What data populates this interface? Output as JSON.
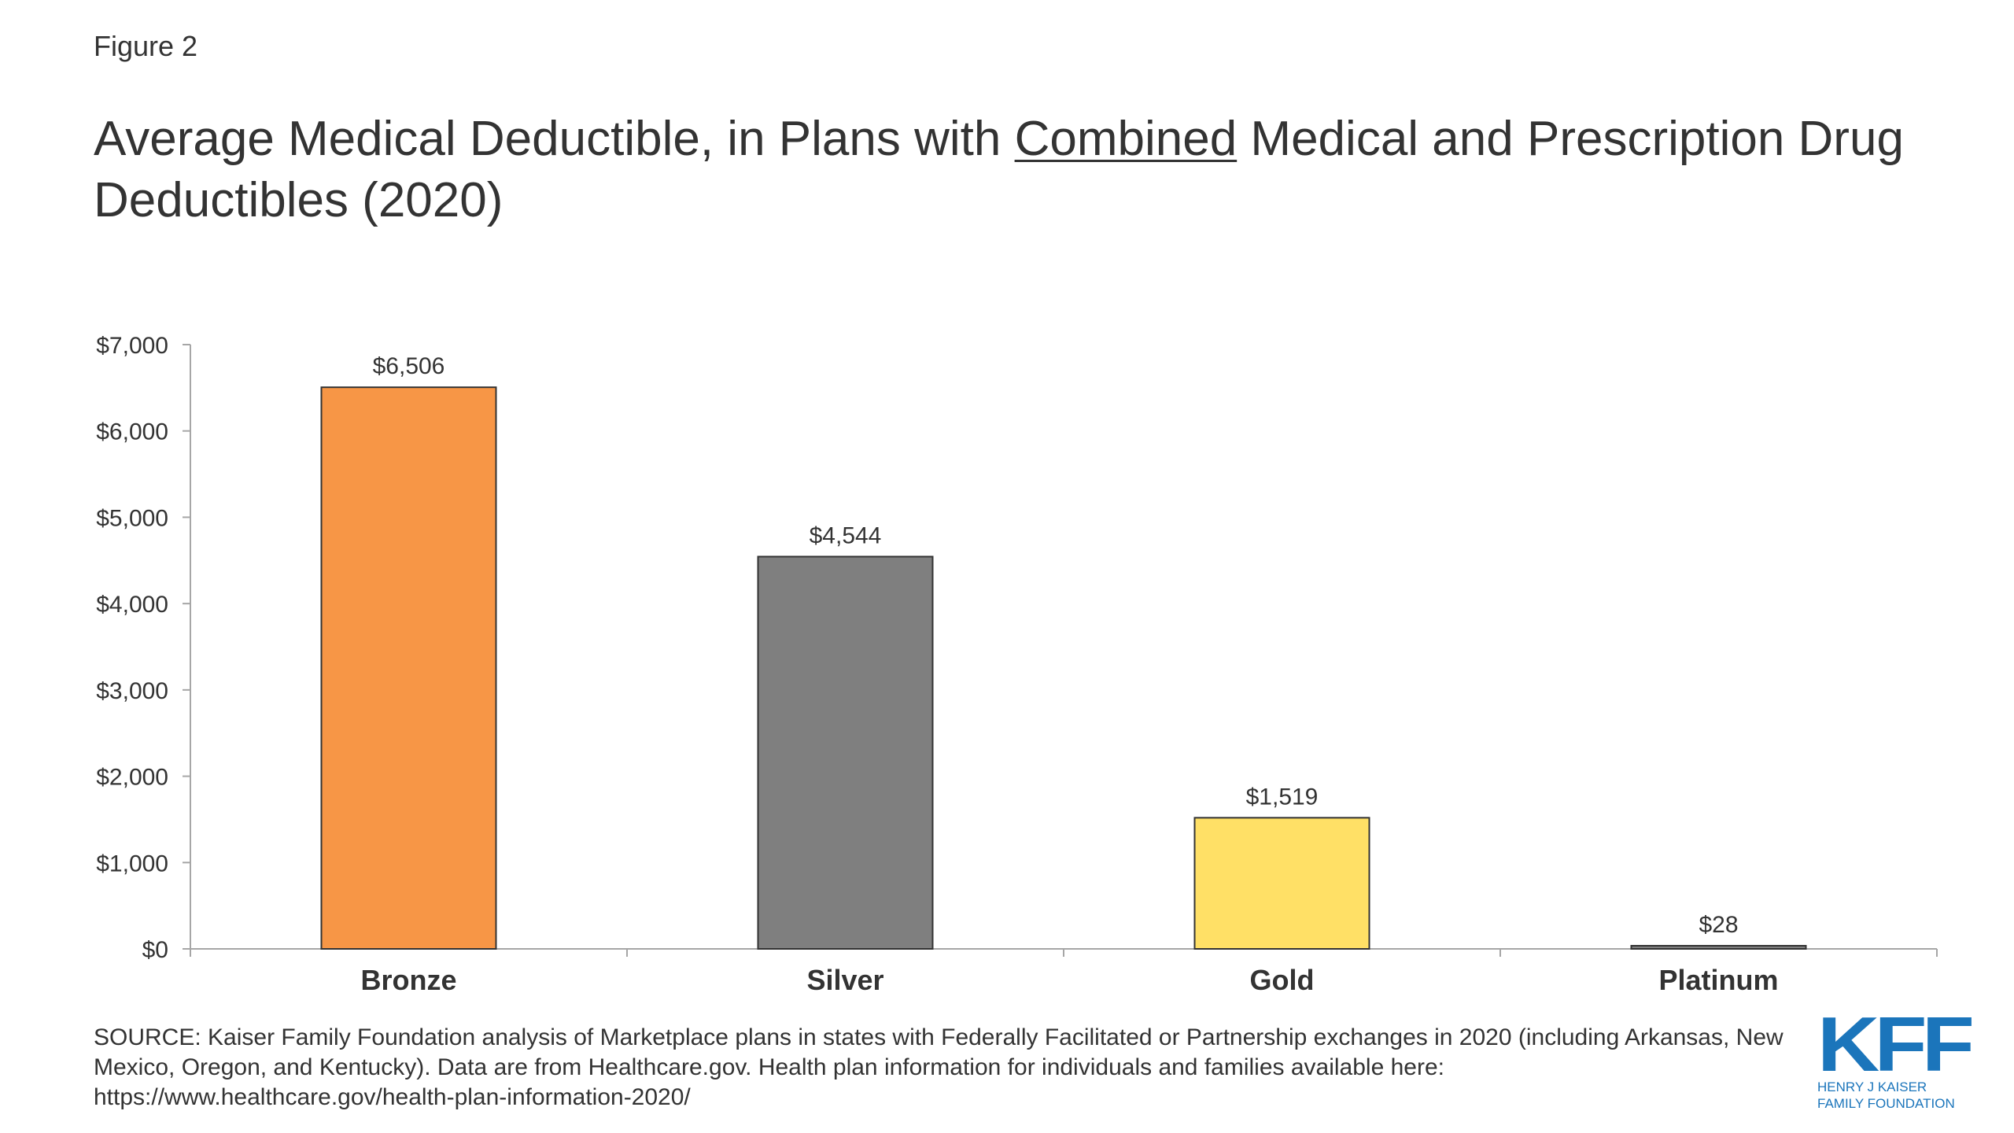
{
  "figure_label": "Figure 2",
  "title": {
    "part1": "Average Medical Deductible, in Plans with ",
    "emphasis": "Combined",
    "part2": " Medical and Prescription Drug Deductibles (2020)"
  },
  "source": "SOURCE: Kaiser Family Foundation analysis of Marketplace plans in states with Federally Facilitated or Partnership exchanges in 2020 (including Arkansas, New Mexico, Oregon, and Kentucky). Data are from Healthcare.gov. Health plan information for individuals and families available here: https://www.healthcare.gov/health-plan-information-2020/",
  "logo": {
    "mark": "KFF",
    "line1": "HENRY J KAISER",
    "line2": "FAMILY FOUNDATION",
    "color": "#1b75bb"
  },
  "chart_data": {
    "type": "bar",
    "title": "Average Medical Deductible, in Plans with Combined Medical and Prescription Drug Deductibles (2020)",
    "xlabel": "",
    "ylabel": "",
    "categories": [
      "Bronze",
      "Silver",
      "Gold",
      "Platinum"
    ],
    "values": [
      6506,
      4544,
      1519,
      28
    ],
    "value_labels": [
      "$6,506",
      "$4,544",
      "$1,519",
      "$28"
    ],
    "colors": [
      "#f79646",
      "#7f7f7f",
      "#ffe066",
      "#7f7f7f"
    ],
    "ylim": [
      0,
      7000
    ],
    "yticks": [
      0,
      1000,
      2000,
      3000,
      4000,
      5000,
      6000,
      7000
    ],
    "ytick_labels": [
      "$0",
      "$1,000",
      "$2,000",
      "$3,000",
      "$4,000",
      "$5,000",
      "$6,000",
      "$7,000"
    ],
    "grid": false,
    "legend": "none"
  }
}
